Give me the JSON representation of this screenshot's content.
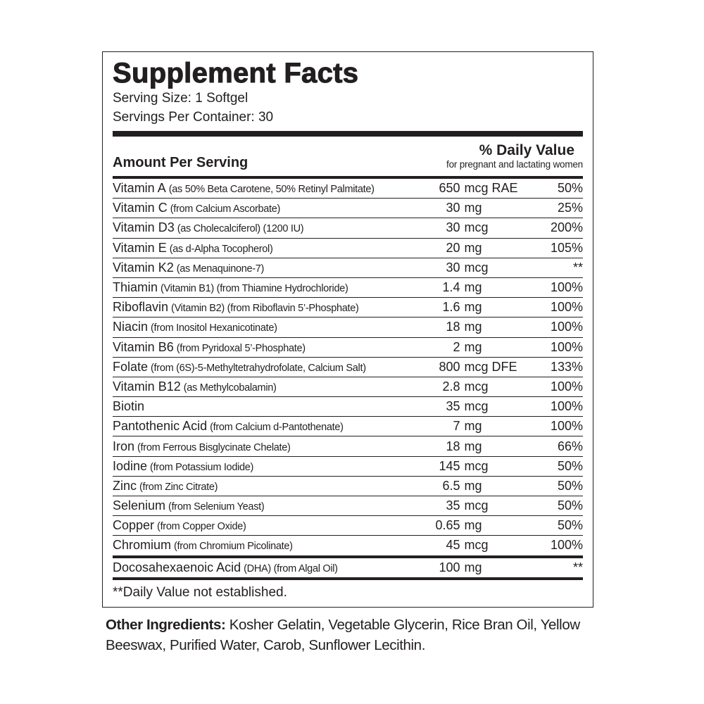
{
  "panel": {
    "title": "Supplement Facts",
    "serving_size": "Serving Size: 1 Softgel",
    "servings_per_container": "Servings Per Container: 30",
    "header": {
      "amount": "Amount Per Serving",
      "daily_value": "% Daily Value",
      "daily_value_note": "for pregnant and lactating women"
    },
    "rows": [
      {
        "name": "Vitamin A",
        "detail": "(as 50% Beta Carotene, 50% Retinyl Palmitate)",
        "amount": "650",
        "unit": "mcg RAE",
        "dv": "50%"
      },
      {
        "name": "Vitamin C",
        "detail": "(from Calcium Ascorbate)",
        "amount": "30",
        "unit": "mg",
        "dv": "25%"
      },
      {
        "name": "Vitamin D3",
        "detail": "(as Cholecalciferol) (1200 IU)",
        "amount": "30",
        "unit": "mcg",
        "dv": "200%"
      },
      {
        "name": "Vitamin E",
        "detail": "(as d-Alpha Tocopherol)",
        "amount": "20",
        "unit": "mg",
        "dv": "105%"
      },
      {
        "name": "Vitamin K2",
        "detail": "(as Menaquinone-7)",
        "amount": "30",
        "unit": "mcg",
        "dv": "**"
      },
      {
        "name": "Thiamin",
        "detail": "(Vitamin B1) (from Thiamine Hydrochloride)",
        "amount": "1.4",
        "unit": "mg",
        "dv": "100%"
      },
      {
        "name": "Riboflavin",
        "detail": "(Vitamin B2) (from Riboflavin 5’-Phosphate)",
        "amount": "1.6",
        "unit": "mg",
        "dv": "100%"
      },
      {
        "name": "Niacin",
        "detail": "(from Inositol Hexanicotinate)",
        "amount": "18",
        "unit": "mg",
        "dv": "100%"
      },
      {
        "name": "Vitamin B6",
        "detail": "(from Pyridoxal 5’-Phosphate)",
        "amount": "2",
        "unit": "mg",
        "dv": "100%"
      },
      {
        "name": "Folate",
        "detail": "(from (6S)-5-Methyltetrahydrofolate, Calcium Salt)",
        "amount": "800",
        "unit": "mcg DFE",
        "dv": "133%"
      },
      {
        "name": "Vitamin B12",
        "detail": "(as Methylcobalamin)",
        "amount": "2.8",
        "unit": "mcg",
        "dv": "100%"
      },
      {
        "name": "Biotin",
        "detail": "",
        "amount": "35",
        "unit": "mcg",
        "dv": "100%"
      },
      {
        "name": "Pantothenic Acid",
        "detail": "(from Calcium d-Pantothenate)",
        "amount": "7",
        "unit": "mg",
        "dv": "100%"
      },
      {
        "name": "Iron",
        "detail": "(from Ferrous Bisglycinate Chelate)",
        "amount": "18",
        "unit": "mg",
        "dv": "66%"
      },
      {
        "name": "Iodine",
        "detail": "(from Potassium Iodide)",
        "amount": "145",
        "unit": "mcg",
        "dv": "50%"
      },
      {
        "name": "Zinc",
        "detail": "(from Zinc Citrate)",
        "amount": "6.5",
        "unit": "mg",
        "dv": "50%"
      },
      {
        "name": "Selenium",
        "detail": "(from Selenium Yeast)",
        "amount": "35",
        "unit": "mcg",
        "dv": "50%"
      },
      {
        "name": "Copper",
        "detail": "(from Copper Oxide)",
        "amount": "0.65",
        "unit": "mg",
        "dv": "50%"
      },
      {
        "name": "Chromium",
        "detail": "(from Chromium Picolinate)",
        "amount": "45",
        "unit": "mcg",
        "dv": "100%"
      }
    ],
    "extra_rows": [
      {
        "name": "Docosahexaenoic Acid",
        "detail": "(DHA) (from Algal Oil)",
        "amount": "100",
        "unit": "mg",
        "dv": "**"
      }
    ],
    "footnote": "**Daily Value not established."
  },
  "other_ingredients": {
    "label": "Other Ingredients:",
    "text": "Kosher Gelatin, Vegetable Glycerin, Rice Bran Oil, Yellow Beeswax, Purified Water, Carob, Sunflower Lecithin."
  }
}
